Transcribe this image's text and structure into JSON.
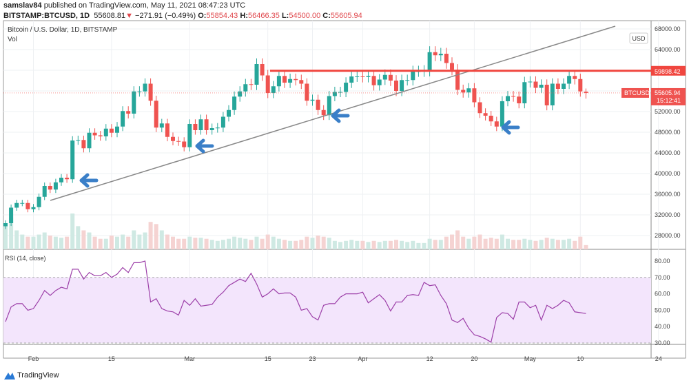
{
  "header": {
    "user": "samslav84",
    "published": "published on TradingView.com, May 11, 2021 08:47:23 UTC",
    "symbol": "BITSTAMP:BTCUSD, 1D",
    "last": "55608.81",
    "change": "−271.91 (−0.49%)",
    "o_label": "O:",
    "o": "55854.43",
    "h_label": "H:",
    "h": "56466.35",
    "l_label": "L:",
    "l": "54500.00",
    "c_label": "C:",
    "c": "55605.94"
  },
  "legend": {
    "title": "Bitcoin / U.S. Dollar, 1D, BITSTAMP",
    "vol": "Vol",
    "rsi": "RSI (14, close)"
  },
  "price_axis": {
    "currency": "USD",
    "ticks": [
      "68000.00",
      "64000.00",
      "52000.00",
      "48000.00",
      "44000.00",
      "40000.00",
      "36000.00",
      "32000.00",
      "28000.00"
    ],
    "resistance_label": "59898.42",
    "symbol_label": "BTCUSD",
    "price_label": "55605.94",
    "countdown": "15:12:41"
  },
  "rsi_axis": {
    "ticks": [
      "80.00",
      "70.00",
      "60.00",
      "50.00",
      "40.00",
      "30.00"
    ]
  },
  "x_axis": {
    "ticks": [
      "Feb",
      "15",
      "Mar",
      "15",
      "23",
      "Apr",
      "12",
      "20",
      "May",
      "10",
      "24"
    ]
  },
  "footer": {
    "brand": "TradingView"
  },
  "colors": {
    "up": "#26a69a",
    "down": "#ef5350",
    "resistance": "#f0463f",
    "trendline": "#888888",
    "arrow": "#3a7fc8",
    "rsi": "#9c3fa8",
    "rsi_band": "#f3e5fc"
  },
  "chart_data": {
    "type": "candlestick",
    "start_date": "2021-01-27",
    "interval": "1D",
    "ylim": [
      26000,
      69000
    ],
    "close": [
      30400,
      33400,
      34300,
      34300,
      33100,
      33500,
      35500,
      37600,
      36900,
      38300,
      39200,
      38900,
      46400,
      46500,
      44900,
      47900,
      47400,
      47200,
      48700,
      47900,
      49100,
      52100,
      51600,
      55900,
      55900,
      57400,
      54100,
      48900,
      49700,
      47100,
      46300,
      46200,
      45100,
      49600,
      48400,
      50500,
      48400,
      48800,
      48900,
      51000,
      52300,
      54900,
      55900,
      57300,
      57200,
      61200,
      59000,
      55600,
      56900,
      58900,
      57600,
      58300,
      58100,
      57400,
      54100,
      54300,
      52300,
      51300,
      55000,
      55800,
      55800,
      57600,
      58800,
      58800,
      58700,
      58900,
      57100,
      58200,
      59100,
      58000,
      56000,
      58100,
      58100,
      59800,
      59800,
      59900,
      63500,
      62900,
      63200,
      61400,
      60100,
      56200,
      55700,
      56500,
      53800,
      51700,
      51200,
      50100,
      49100,
      54000,
      55000,
      54900,
      53600,
      57700,
      57800,
      56600,
      57200,
      53200,
      57400,
      56400,
      57400,
      58900,
      58300,
      55900,
      55606
    ],
    "last_candle": {
      "open": 55854.43,
      "high": 56466.35,
      "low": 54500.0,
      "close": 55605.94
    },
    "volume": [
      22,
      30,
      18,
      14,
      12,
      12,
      14,
      16,
      13,
      12,
      11,
      12,
      34,
      22,
      18,
      16,
      12,
      10,
      10,
      13,
      12,
      14,
      12,
      18,
      14,
      16,
      26,
      24,
      18,
      14,
      12,
      10,
      10,
      12,
      11,
      11,
      10,
      9,
      8,
      9,
      10,
      12,
      11,
      10,
      9,
      12,
      10,
      14,
      12,
      10,
      9,
      8,
      8,
      9,
      12,
      11,
      13,
      12,
      11,
      8,
      7,
      8,
      9,
      8,
      8,
      7,
      8,
      7,
      8,
      8,
      9,
      8,
      7,
      8,
      6,
      6,
      10,
      9,
      9,
      12,
      14,
      18,
      12,
      10,
      12,
      14,
      10,
      11,
      10,
      14,
      10,
      9,
      9,
      10,
      9,
      8,
      9,
      11,
      10,
      9,
      9,
      10,
      8,
      12,
      4
    ],
    "resistance": 59898.42,
    "rsi": {
      "period": 14,
      "source": "close",
      "ylim": [
        25,
        85
      ],
      "overbought": 70,
      "oversold": 30,
      "values": [
        43,
        52,
        54,
        54,
        50,
        51,
        56,
        62,
        59,
        62,
        64,
        63,
        75,
        75,
        69,
        73,
        71,
        71,
        73,
        70,
        72,
        76,
        73,
        79,
        79,
        80,
        55,
        57,
        51,
        49.5,
        49,
        47,
        56,
        53,
        57,
        52.5,
        53,
        53.5,
        58,
        61,
        65,
        67,
        69,
        67.5,
        72.5,
        66,
        58,
        60,
        63,
        60,
        60.5,
        60.5,
        58,
        50,
        51,
        46,
        44,
        53,
        54,
        54,
        58,
        60,
        60,
        60,
        61,
        54.5,
        57,
        59.5,
        56,
        49.5,
        55,
        55,
        59,
        59.5,
        59,
        67,
        65,
        65.5,
        59,
        54,
        44,
        42.5,
        45,
        39,
        35,
        34,
        32.5,
        30.5,
        45.5,
        48.5,
        48,
        44.5,
        55,
        55,
        51.5,
        53,
        44,
        53,
        51,
        53,
        56,
        54.5,
        49,
        48.5,
        48
      ]
    }
  }
}
